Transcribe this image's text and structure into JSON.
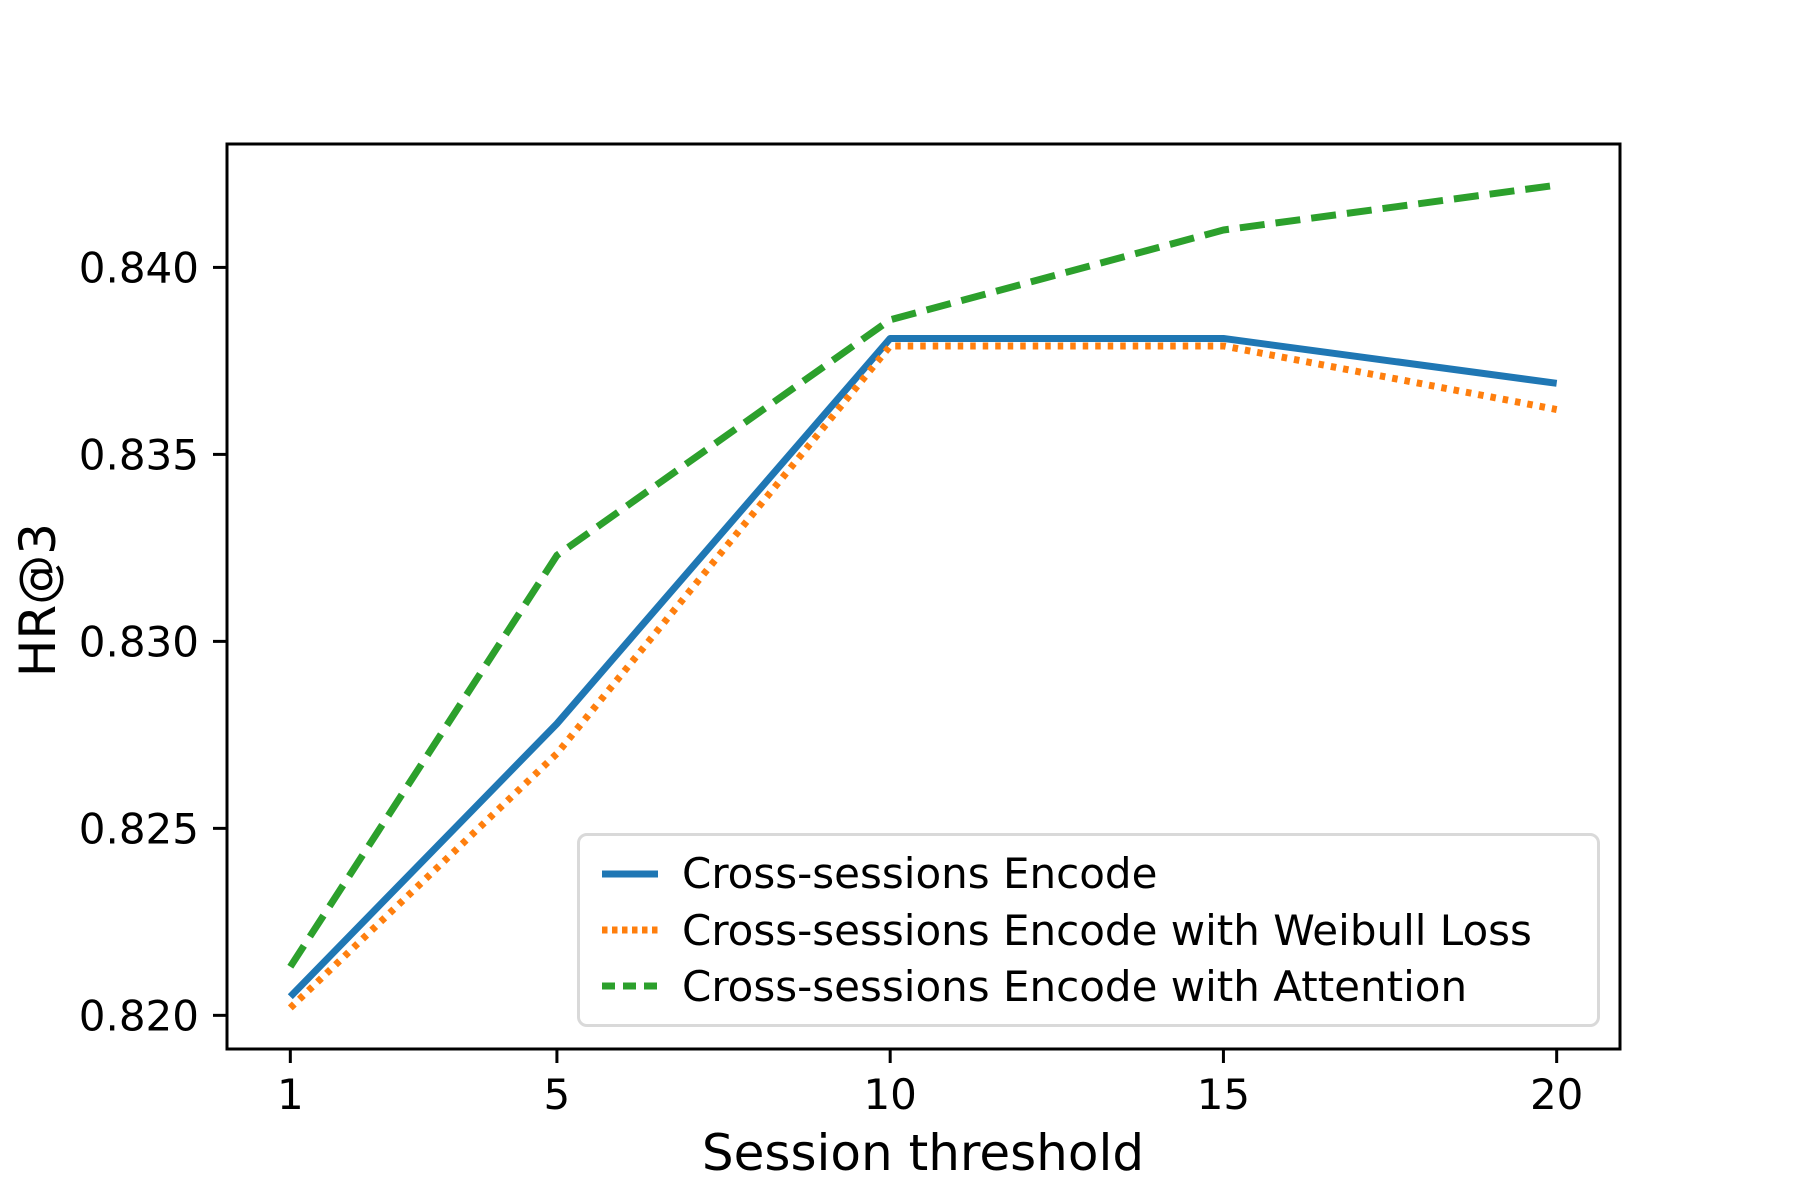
{
  "chart_data": {
    "type": "line",
    "title": "",
    "xlabel": "Session threshold",
    "ylabel": "HR@3",
    "x": [
      1,
      5,
      10,
      15,
      20
    ],
    "series": [
      {
        "name": "Cross-sessions Encode",
        "color": "#1f77b4",
        "style": "solid",
        "values": [
          0.8205,
          0.8278,
          0.8381,
          0.8381,
          0.8369
        ]
      },
      {
        "name": "Cross-sessions Encode with Weibull Loss",
        "color": "#ff7f0e",
        "style": "dotted",
        "values": [
          0.8202,
          0.827,
          0.8379,
          0.8379,
          0.8362
        ]
      },
      {
        "name": "Cross-sessions Encode with Attention",
        "color": "#2ca02c",
        "style": "dashed",
        "values": [
          0.8213,
          0.8323,
          0.8386,
          0.841,
          0.8422
        ]
      }
    ],
    "xlim": [
      0.05,
      20.95
    ],
    "ylim": [
      0.8191,
      0.8433
    ],
    "xticks": {
      "values": [
        1,
        5,
        10,
        15,
        20
      ],
      "labels": [
        "1",
        "5",
        "10",
        "15",
        "20"
      ]
    },
    "yticks": {
      "values": [
        0.82,
        0.825,
        0.83,
        0.835,
        0.84
      ],
      "labels": [
        "0.820",
        "0.825",
        "0.830",
        "0.835",
        "0.840"
      ]
    },
    "grid": false,
    "legend_position": "lower right inside",
    "axis_color": "#000000",
    "legend_border_color": "#d9d9d9"
  }
}
